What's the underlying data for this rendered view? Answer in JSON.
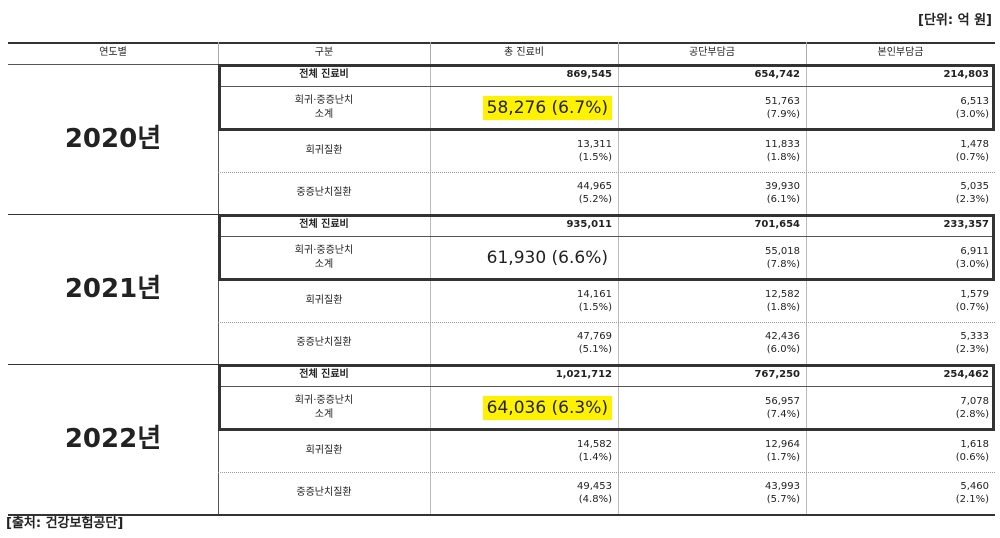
{
  "unit": "[단위: 억 원]",
  "headers": [
    "연도별",
    "구분",
    "총 진료비",
    "공단부담금",
    "본인부담금"
  ],
  "years": [
    {
      "year": "2020년",
      "highlight": true,
      "rows": [
        {
          "label": "전체 진료비",
          "cells": [
            "869,545",
            "654,742",
            "214,803"
          ]
        },
        {
          "label": [
            "회귀·중증난치",
            "소계"
          ],
          "cells": [
            "58,276 (6.7%)",
            [
              "51,763",
              "(7.9%)"
            ],
            [
              "6,513",
              "(3.0%)"
            ]
          ]
        },
        {
          "label": "회귀질환",
          "cells": [
            [
              "13,311",
              "(1.5%)"
            ],
            [
              "11,833",
              "(1.8%)"
            ],
            [
              "1,478",
              "(0.7%)"
            ]
          ]
        },
        {
          "label": "중증난치질환",
          "cells": [
            [
              "44,965",
              "(5.2%)"
            ],
            [
              "39,930",
              "(6.1%)"
            ],
            [
              "5,035",
              "(2.3%)"
            ]
          ]
        }
      ]
    },
    {
      "year": "2021년",
      "highlight": false,
      "rows": [
        {
          "label": "전체 진료비",
          "cells": [
            "935,011",
            "701,654",
            "233,357"
          ]
        },
        {
          "label": [
            "회귀·중증난치",
            "소계"
          ],
          "cells": [
            "61,930 (6.6%)",
            [
              "55,018",
              "(7.8%)"
            ],
            [
              "6,911",
              "(3.0%)"
            ]
          ]
        },
        {
          "label": "회귀질환",
          "cells": [
            [
              "14,161",
              "(1.5%)"
            ],
            [
              "12,582",
              "(1.8%)"
            ],
            [
              "1,579",
              "(0.7%)"
            ]
          ]
        },
        {
          "label": "중증난치질환",
          "cells": [
            [
              "47,769",
              "(5.1%)"
            ],
            [
              "42,436",
              "(6.0%)"
            ],
            [
              "5,333",
              "(2.3%)"
            ]
          ]
        }
      ]
    },
    {
      "year": "2022년",
      "highlight": true,
      "rows": [
        {
          "label": "전체 진료비",
          "cells": [
            "1,021,712",
            "767,250",
            "254,462"
          ]
        },
        {
          "label": [
            "회귀·중증난치",
            "소계"
          ],
          "cells": [
            "64,036 (6.3%)",
            [
              "56,957",
              "(7.4%)"
            ],
            [
              "7,078",
              "(2.8%)"
            ]
          ]
        },
        {
          "label": "회귀질환",
          "cells": [
            [
              "14,582",
              "(1.4%)"
            ],
            [
              "12,964",
              "(1.7%)"
            ],
            [
              "1,618",
              "(0.6%)"
            ]
          ]
        },
        {
          "label": "중증난치질환",
          "cells": [
            [
              "49,453",
              "(4.8%)"
            ],
            [
              "43,993",
              "(5.7%)"
            ],
            [
              "5,460",
              "(2.1%)"
            ]
          ]
        }
      ]
    }
  ],
  "source": "[출처: 건강보험공단]"
}
